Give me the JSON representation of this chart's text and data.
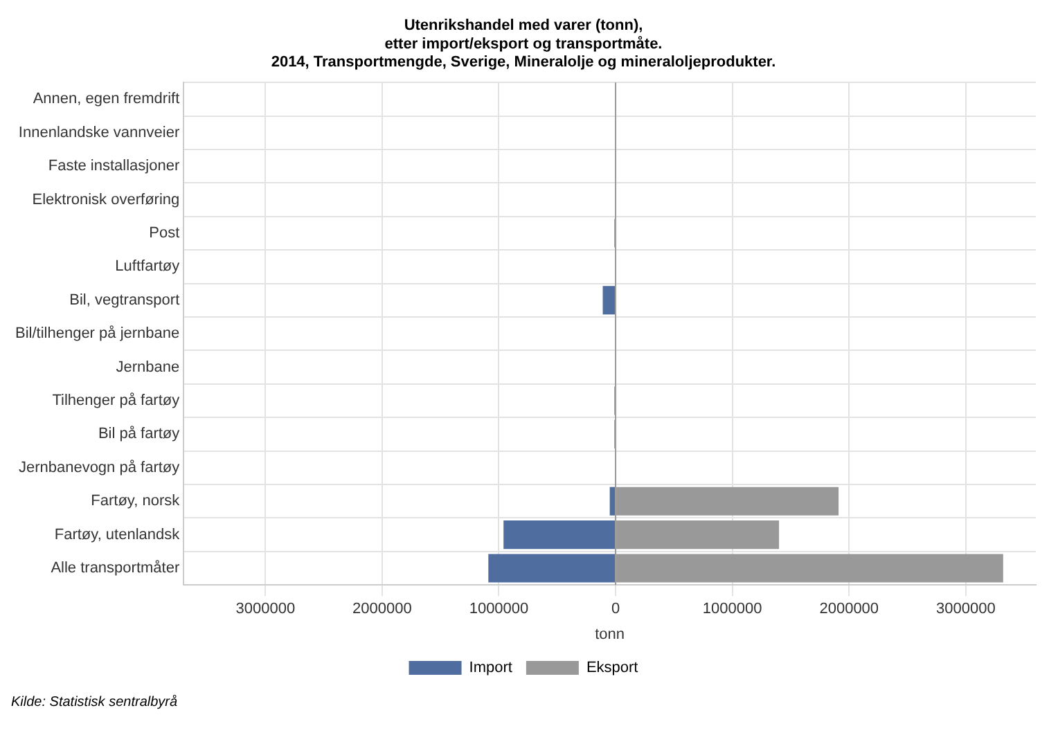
{
  "chart_data": {
    "type": "bar",
    "orientation": "horizontal",
    "stacked": true,
    "title": "Utenrikshandel med varer (tonn),\netter import/eksport og transportmåte.\n2014, Transportmengde, Sverige, Mineralolje og mineraloljeprodukter.",
    "xlabel": "tonn",
    "categories": [
      "Annen, egen fremdrift",
      "Innenlandske vannveier",
      "Faste installasjoner",
      "Elektronisk overføring",
      "Post",
      "Luftfartøy",
      "Bil, vegtransport",
      "Bil/tilhenger på jernbane",
      "Jernbane",
      "Tilhenger på fartøy",
      "Bil på fartøy",
      "Jernbanevogn på fartøy",
      "Fartøy, norsk",
      "Fartøy, utenlandsk",
      "Alle transportmåter"
    ],
    "series": [
      {
        "name": "Import",
        "color": "#4f6d9f",
        "values": [
          0,
          0,
          0,
          0,
          -10000,
          0,
          -110000,
          0,
          0,
          -10000,
          -10000,
          0,
          -50000,
          -960000,
          -1090000
        ]
      },
      {
        "name": "Eksport",
        "color": "#999999",
        "values": [
          0,
          0,
          0,
          0,
          0,
          0,
          0,
          0,
          0,
          0,
          0,
          0,
          1910000,
          1400000,
          3320000
        ]
      }
    ],
    "xlim": [
      -3700000,
      3600000
    ],
    "xticks": [
      {
        "value": -3000000,
        "label": "3000000"
      },
      {
        "value": -2000000,
        "label": "2000000"
      },
      {
        "value": -1000000,
        "label": "1000000"
      },
      0,
      1000000,
      2000000,
      3000000
    ],
    "grid": true,
    "legend": "bottom",
    "annotations": [
      "Kilde: Statistisk sentralbyrå"
    ]
  }
}
